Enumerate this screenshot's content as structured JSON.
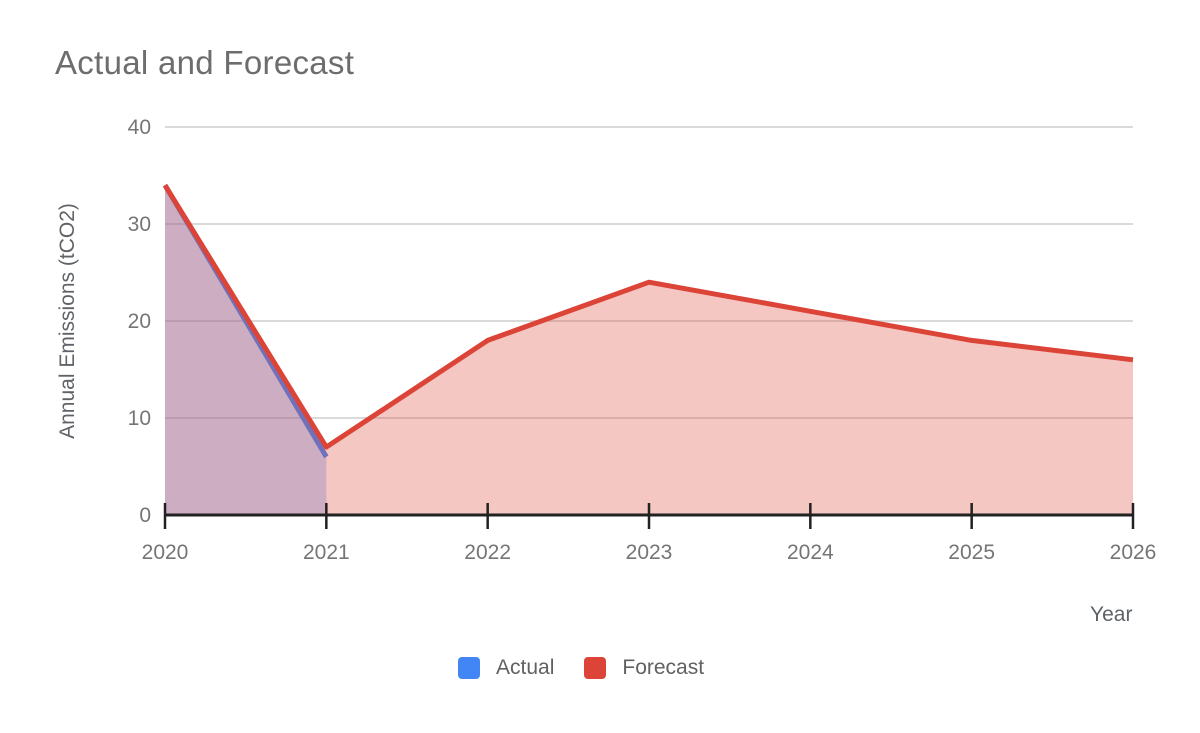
{
  "chart_data": {
    "type": "area",
    "title": "Actual and Forecast",
    "xlabel": "Year",
    "ylabel": "Annual Emissions (tCO2)",
    "categories": [
      "2020",
      "2021",
      "2022",
      "2023",
      "2024",
      "2025",
      "2026"
    ],
    "y_ticks": [
      0,
      10,
      20,
      30,
      40
    ],
    "ylim": [
      0,
      40
    ],
    "grid": true,
    "legend_position": "bottom",
    "series": [
      {
        "name": "Actual",
        "color": "#4285f4",
        "fill_opacity": 0.3,
        "x": [
          "2020",
          "2021"
        ],
        "values": [
          34,
          6
        ]
      },
      {
        "name": "Forecast",
        "color": "#db4437",
        "fill_opacity": 0.3,
        "x": [
          "2020",
          "2021",
          "2022",
          "2023",
          "2024",
          "2025",
          "2026"
        ],
        "values": [
          34,
          7,
          18,
          24,
          21,
          18,
          16
        ]
      }
    ],
    "axis_color": "#212121",
    "grid_color": "#dadada",
    "tick_label_color": "#757575",
    "title_color": "#6d6d6d",
    "axis_title_color": "#5f6368",
    "legend_label_color": "#616161"
  }
}
